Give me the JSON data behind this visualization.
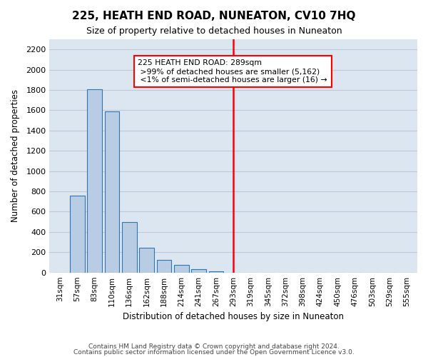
{
  "title": "225, HEATH END ROAD, NUNEATON, CV10 7HQ",
  "subtitle": "Size of property relative to detached houses in Nuneaton",
  "xlabel": "Distribution of detached houses by size in Nuneaton",
  "ylabel": "Number of detached properties",
  "footer1": "Contains HM Land Registry data © Crown copyright and database right 2024.",
  "footer2": "Contains public sector information licensed under the Open Government Licence v3.0.",
  "bar_color": "#b8cce4",
  "bar_edge_color": "#2e75b6",
  "background_color": "#dce6f1",
  "categories": [
    "31sqm",
    "57sqm",
    "83sqm",
    "110sqm",
    "136sqm",
    "162sqm",
    "188sqm",
    "214sqm",
    "241sqm",
    "267sqm",
    "293sqm",
    "319sqm",
    "345sqm",
    "372sqm",
    "398sqm",
    "424sqm",
    "450sqm",
    "476sqm",
    "503sqm",
    "529sqm",
    "555sqm"
  ],
  "values": [
    0,
    760,
    1810,
    1590,
    500,
    245,
    125,
    75,
    30,
    15,
    0,
    0,
    0,
    0,
    0,
    0,
    0,
    0,
    0,
    0,
    0
  ],
  "ylim": [
    0,
    2300
  ],
  "yticks": [
    0,
    200,
    400,
    600,
    800,
    1000,
    1200,
    1400,
    1600,
    1800,
    2000,
    2200
  ],
  "redline_index": 10,
  "annotation_text": "225 HEATH END ROAD: 289sqm\n >99% of detached houses are smaller (5,162)\n <1% of semi-detached houses are larger (16) →",
  "annotation_box_color": "white",
  "annotation_border_color": "red",
  "redline_color": "red",
  "grid_color": "#c0c8d8"
}
